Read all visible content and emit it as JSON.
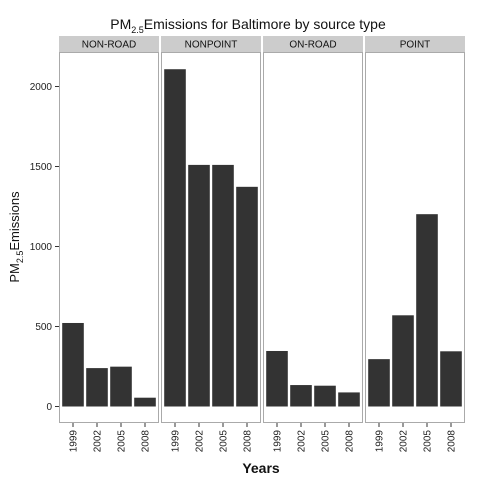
{
  "chart_data": {
    "type": "bar",
    "title_main": "PM",
    "title_sub": "2.5",
    "title_rest": "Emissions for Baltimore by source type",
    "xlabel": "Years",
    "ylabel_main": "PM",
    "ylabel_sub": "2.5",
    "ylabel_rest": "Emissions",
    "ylim": [
      0,
      2200
    ],
    "yticks": [
      0,
      500,
      1000,
      1500,
      2000
    ],
    "ytick_labels": [
      "0",
      "500",
      "1000",
      "1500",
      "2000"
    ],
    "categories": [
      "1999",
      "2002",
      "2005",
      "2008"
    ],
    "bar_color": "#333333",
    "strip_color": "#cccccc",
    "panel_border_color": "#aaaaaa",
    "panels": [
      {
        "name": "NON-ROAD",
        "values": [
          522,
          240,
          249,
          55
        ]
      },
      {
        "name": "NONPOINT",
        "values": [
          2108,
          1510,
          1510,
          1373
        ]
      },
      {
        "name": "ON-ROAD",
        "values": [
          347,
          134,
          130,
          88
        ]
      },
      {
        "name": "POINT",
        "values": [
          296,
          570,
          1202,
          345
        ]
      }
    ]
  }
}
